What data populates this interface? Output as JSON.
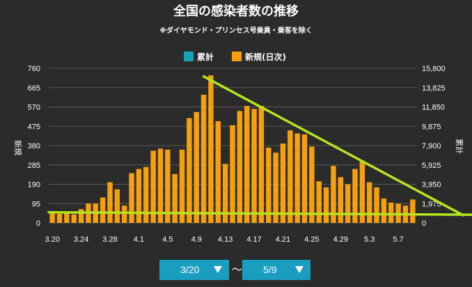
{
  "chart_data": {
    "type": "bar",
    "title": "全国の感染者数の推移",
    "subtitle": "※ダイヤモンド・プリンセス号乗員・乗客を除く",
    "legend": [
      {
        "label": "累計",
        "color": "#17a2b8"
      },
      {
        "label": "新規(日次)",
        "color": "#f5a00f"
      }
    ],
    "ylabel_left": "新規",
    "ylabel_right": "累計",
    "ylim_left": [
      0,
      760
    ],
    "ylim_right": [
      0,
      15800
    ],
    "yticks_left": [
      "760",
      "665",
      "570",
      "475",
      "380",
      "285",
      "190",
      "95",
      "0"
    ],
    "yticks_right": [
      "15,800",
      "13,825",
      "11,850",
      "9,875",
      "7,900",
      "5,925",
      "3,950",
      "1,975",
      "0"
    ],
    "xtick_labels": [
      "3.20",
      "3.24",
      "3.28",
      "4.1",
      "4.5",
      "4.9",
      "4.13",
      "4.17",
      "4.21",
      "4.25",
      "4.29",
      "5.3",
      "5.7"
    ],
    "categories": [
      "3.20",
      "3.21",
      "3.22",
      "3.23",
      "3.24",
      "3.25",
      "3.26",
      "3.27",
      "3.28",
      "3.29",
      "3.30",
      "3.31",
      "4.1",
      "4.2",
      "4.3",
      "4.4",
      "4.5",
      "4.6",
      "4.7",
      "4.8",
      "4.9",
      "4.10",
      "4.11",
      "4.12",
      "4.13",
      "4.14",
      "4.15",
      "4.16",
      "4.17",
      "4.18",
      "4.19",
      "4.20",
      "4.21",
      "4.22",
      "4.23",
      "4.24",
      "4.25",
      "4.26",
      "4.27",
      "4.28",
      "4.29",
      "4.30",
      "5.1",
      "5.2",
      "5.3",
      "5.4",
      "5.5",
      "5.6",
      "5.7",
      "5.8",
      "5.9"
    ],
    "series": [
      {
        "name": "新規(日次)",
        "color": "#f5a00f",
        "values": [
          55,
          45,
          48,
          42,
          68,
          95,
          95,
          125,
          200,
          165,
          85,
          245,
          265,
          275,
          355,
          365,
          360,
          240,
          360,
          515,
          545,
          630,
          725,
          500,
          290,
          480,
          550,
          575,
          560,
          575,
          370,
          345,
          390,
          455,
          440,
          435,
          375,
          205,
          175,
          280,
          225,
          190,
          265,
          305,
          200,
          175,
          120,
          100,
          95,
          85,
          115
        ]
      }
    ],
    "annotations": [
      {
        "type": "line",
        "color": "#b5e61d",
        "points": [
          [
            "4.10",
            720
          ],
          [
            "5.9+7",
            38
          ]
        ]
      },
      {
        "type": "line",
        "color": "#b5e61d",
        "points": [
          [
            "3.20",
            52
          ],
          [
            "5.9+9",
            40
          ]
        ]
      }
    ]
  },
  "controls": {
    "range_start": "3/20",
    "range_separator": "～",
    "range_end": "5/9"
  }
}
